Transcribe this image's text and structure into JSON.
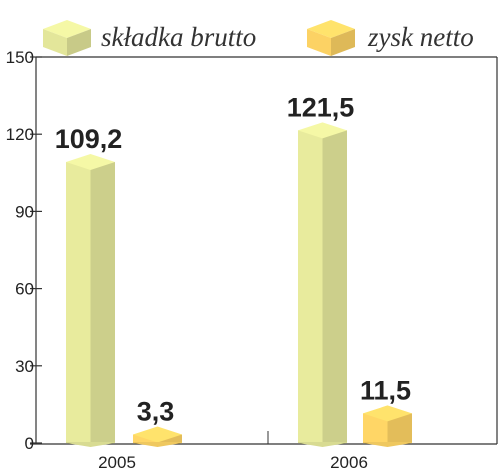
{
  "chart_data": {
    "type": "bar",
    "categories": [
      "2005",
      "2006"
    ],
    "series": [
      {
        "name": "składka brutto",
        "values": [
          109.2,
          121.5
        ],
        "labels": [
          "109,2",
          "121,5"
        ],
        "color": "#e3e69a"
      },
      {
        "name": "zysk netto",
        "values": [
          3.3,
          11.5
        ],
        "labels": [
          "3,3",
          "11,5"
        ],
        "color": "#fcd264"
      }
    ],
    "y_ticks": [
      "0",
      "30",
      "60",
      "90",
      "120",
      "150"
    ],
    "ylim": [
      0,
      150
    ],
    "grid": false,
    "legend_position": "top",
    "bar_style": "3d"
  }
}
